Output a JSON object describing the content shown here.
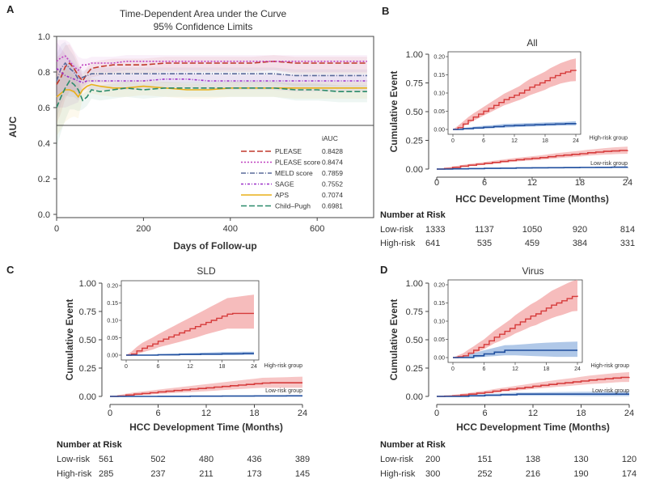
{
  "colors": {
    "high": "#d63b3b",
    "high_band": "#f2a0a0",
    "low": "#1f4e9e",
    "low_band": "#8fb1de",
    "high_number": "#c0392b",
    "low_number": "#2a52a0"
  },
  "chart_data": [
    {
      "panel": "A",
      "type": "line",
      "title": "Time-Dependent Area under the Curve",
      "subtitle": "95% Confidence Limits",
      "xlabel": "Days of Follow-up",
      "ylabel": "AUC",
      "xlim": [
        0,
        730
      ],
      "ylim": [
        0.0,
        1.0
      ],
      "xticks": [
        0,
        200,
        400,
        600
      ],
      "yticks": [
        0.0,
        0.2,
        0.4,
        0.6,
        0.8,
        1.0
      ],
      "reference_line": 0.5,
      "legend_header": "iAUC",
      "series": [
        {
          "name": "PLEASE",
          "iauc": "0.8428",
          "color": "#c0392b",
          "dash": "7,3",
          "x": [
            0,
            10,
            20,
            30,
            40,
            50,
            60,
            70,
            80,
            100,
            130,
            160,
            200,
            250,
            300,
            350,
            400,
            450,
            500,
            550,
            600,
            650,
            700,
            715
          ],
          "y": [
            0.73,
            0.77,
            0.83,
            0.85,
            0.82,
            0.78,
            0.75,
            0.79,
            0.82,
            0.83,
            0.84,
            0.84,
            0.84,
            0.85,
            0.85,
            0.85,
            0.85,
            0.85,
            0.86,
            0.85,
            0.85,
            0.85,
            0.85,
            0.85
          ]
        },
        {
          "name": "PLEASE score",
          "iauc": "0.8474",
          "color": "#c040c0",
          "dash": "2,2",
          "x": [
            0,
            10,
            20,
            30,
            40,
            50,
            60,
            70,
            80,
            100,
            130,
            160,
            200,
            250,
            300,
            350,
            400,
            450,
            500,
            550,
            600,
            650,
            700,
            715
          ],
          "y": [
            0.86,
            0.88,
            0.89,
            0.86,
            0.83,
            0.81,
            0.84,
            0.84,
            0.85,
            0.85,
            0.85,
            0.86,
            0.86,
            0.86,
            0.86,
            0.86,
            0.86,
            0.86,
            0.86,
            0.86,
            0.86,
            0.86,
            0.86,
            0.86
          ]
        },
        {
          "name": "MELD score",
          "iauc": "0.7859",
          "color": "#5a6a9a",
          "dash": "6,2,1,2",
          "x": [
            0,
            10,
            20,
            30,
            40,
            50,
            60,
            70,
            80,
            100,
            130,
            160,
            200,
            250,
            300,
            350,
            400,
            450,
            500,
            550,
            600,
            650,
            700,
            715
          ],
          "y": [
            0.75,
            0.82,
            0.85,
            0.82,
            0.8,
            0.76,
            0.77,
            0.78,
            0.79,
            0.79,
            0.79,
            0.79,
            0.79,
            0.79,
            0.79,
            0.79,
            0.79,
            0.79,
            0.79,
            0.78,
            0.78,
            0.78,
            0.78,
            0.78
          ]
        },
        {
          "name": "SAGE",
          "iauc": "0.7552",
          "color": "#9b30c8",
          "dash": "3,2,1,2",
          "x": [
            0,
            10,
            20,
            30,
            40,
            50,
            60,
            70,
            80,
            100,
            130,
            160,
            200,
            250,
            300,
            350,
            400,
            450,
            500,
            550,
            600,
            650,
            700,
            715
          ],
          "y": [
            0.82,
            0.8,
            0.78,
            0.77,
            0.76,
            0.75,
            0.74,
            0.75,
            0.75,
            0.75,
            0.75,
            0.75,
            0.75,
            0.76,
            0.76,
            0.75,
            0.75,
            0.75,
            0.75,
            0.75,
            0.75,
            0.75,
            0.75,
            0.75
          ]
        },
        {
          "name": "APS",
          "iauc": "0.7074",
          "color": "#e8b018",
          "dash": "",
          "x": [
            0,
            10,
            20,
            30,
            40,
            50,
            60,
            70,
            80,
            100,
            130,
            160,
            200,
            250,
            300,
            350,
            400,
            450,
            500,
            550,
            600,
            650,
            700,
            715
          ],
          "y": [
            0.66,
            0.68,
            0.7,
            0.7,
            0.69,
            0.66,
            0.7,
            0.72,
            0.73,
            0.72,
            0.71,
            0.71,
            0.72,
            0.71,
            0.7,
            0.7,
            0.71,
            0.71,
            0.71,
            0.71,
            0.71,
            0.71,
            0.71,
            0.71
          ]
        },
        {
          "name": "Child–Pugh",
          "iauc": "0.6981",
          "color": "#2a8a6a",
          "dash": "7,3",
          "x": [
            0,
            10,
            20,
            30,
            40,
            50,
            60,
            70,
            80,
            100,
            130,
            160,
            200,
            250,
            300,
            350,
            400,
            450,
            500,
            550,
            600,
            650,
            700,
            715
          ],
          "y": [
            0.6,
            0.66,
            0.71,
            0.75,
            0.73,
            0.7,
            0.64,
            0.66,
            0.7,
            0.69,
            0.7,
            0.71,
            0.7,
            0.71,
            0.71,
            0.71,
            0.71,
            0.71,
            0.71,
            0.7,
            0.7,
            0.69,
            0.69,
            0.69
          ]
        }
      ]
    },
    {
      "panel": "B",
      "type": "line",
      "title": "All",
      "xlabel": "HCC Development Time (Months)",
      "ylabel": "Cumulative Event",
      "xlim": [
        0,
        24
      ],
      "ylim": [
        0,
        1.0
      ],
      "xticks": [
        0,
        6,
        12,
        18,
        24
      ],
      "yticks": [
        "0.00",
        "0.25",
        "0.50",
        "0.75",
        "1.00"
      ],
      "inset_yticks": [
        "0.00",
        "0.05",
        "0.10",
        "0.15",
        "0.20"
      ],
      "inset_xticks": [
        0,
        6,
        12,
        18,
        24
      ],
      "high_label": "High-risk group",
      "low_label": "Low-risk group",
      "high_x": [
        0,
        1,
        2,
        3,
        4,
        5,
        6,
        7,
        8,
        9,
        10,
        11,
        12,
        13,
        14,
        15,
        16,
        17,
        18,
        19,
        20,
        21,
        22,
        23,
        24
      ],
      "high_y": [
        0.0,
        0.005,
        0.015,
        0.025,
        0.034,
        0.042,
        0.05,
        0.058,
        0.066,
        0.074,
        0.082,
        0.088,
        0.094,
        0.1,
        0.108,
        0.116,
        0.122,
        0.128,
        0.134,
        0.142,
        0.148,
        0.154,
        0.158,
        0.162,
        0.164
      ],
      "high_lo": [
        0.0,
        0.002,
        0.008,
        0.016,
        0.024,
        0.031,
        0.038,
        0.045,
        0.052,
        0.059,
        0.066,
        0.071,
        0.076,
        0.081,
        0.087,
        0.094,
        0.099,
        0.104,
        0.109,
        0.116,
        0.121,
        0.126,
        0.129,
        0.132,
        0.133
      ],
      "high_hi": [
        0.0,
        0.01,
        0.022,
        0.034,
        0.044,
        0.053,
        0.062,
        0.071,
        0.08,
        0.089,
        0.098,
        0.105,
        0.112,
        0.119,
        0.129,
        0.138,
        0.145,
        0.152,
        0.159,
        0.168,
        0.175,
        0.182,
        0.187,
        0.192,
        0.195
      ],
      "low_x": [
        0,
        2,
        4,
        6,
        8,
        10,
        12,
        14,
        16,
        18,
        20,
        22,
        24
      ],
      "low_y": [
        0.0,
        0.002,
        0.004,
        0.006,
        0.008,
        0.01,
        0.011,
        0.012,
        0.013,
        0.014,
        0.015,
        0.016,
        0.017
      ],
      "low_lo": [
        0.0,
        0.0,
        0.001,
        0.002,
        0.004,
        0.005,
        0.006,
        0.007,
        0.008,
        0.009,
        0.01,
        0.011,
        0.011
      ],
      "low_hi": [
        0.0,
        0.004,
        0.007,
        0.01,
        0.012,
        0.015,
        0.016,
        0.017,
        0.018,
        0.019,
        0.02,
        0.021,
        0.023
      ],
      "risk_header": "Number at Risk",
      "risk_rows": [
        {
          "label": "Low-risk",
          "group": "low",
          "values": [
            "1333",
            "1137",
            "1050",
            "920",
            "814"
          ]
        },
        {
          "label": "High-risk",
          "group": "high",
          "values": [
            "641",
            "535",
            "459",
            "384",
            "331"
          ]
        }
      ]
    },
    {
      "panel": "C",
      "type": "line",
      "title": "SLD",
      "xlabel": "HCC Development Time (Months)",
      "ylabel": "Cumulative Event",
      "xlim": [
        0,
        24
      ],
      "ylim": [
        0,
        1.0
      ],
      "xticks": [
        0,
        6,
        12,
        18,
        24
      ],
      "yticks": [
        "0.00",
        "0.25",
        "0.50",
        "0.75",
        "1.00"
      ],
      "inset_yticks": [
        "0.00",
        "0.05",
        "0.10",
        "0.15",
        "0.20"
      ],
      "inset_xticks": [
        0,
        6,
        12,
        18,
        24
      ],
      "high_label": "High-risk group",
      "low_label": "Low-risk group",
      "high_x": [
        0,
        1,
        2,
        3,
        4,
        5,
        6,
        7,
        8,
        9,
        10,
        11,
        12,
        13,
        14,
        15,
        16,
        17,
        18,
        19,
        20,
        21,
        22,
        23,
        24
      ],
      "high_y": [
        0.0,
        0.003,
        0.012,
        0.02,
        0.026,
        0.032,
        0.04,
        0.046,
        0.052,
        0.058,
        0.064,
        0.07,
        0.076,
        0.082,
        0.088,
        0.094,
        0.1,
        0.106,
        0.112,
        0.118,
        0.12,
        0.12,
        0.12,
        0.12,
        0.12
      ],
      "high_lo": [
        0.0,
        0.0,
        0.003,
        0.008,
        0.012,
        0.016,
        0.022,
        0.026,
        0.03,
        0.034,
        0.038,
        0.042,
        0.046,
        0.05,
        0.055,
        0.06,
        0.064,
        0.068,
        0.072,
        0.076,
        0.076,
        0.076,
        0.076,
        0.076,
        0.076
      ],
      "high_hi": [
        0.0,
        0.01,
        0.024,
        0.035,
        0.043,
        0.051,
        0.06,
        0.068,
        0.076,
        0.084,
        0.092,
        0.1,
        0.108,
        0.116,
        0.124,
        0.132,
        0.14,
        0.148,
        0.156,
        0.164,
        0.166,
        0.168,
        0.17,
        0.172,
        0.174
      ],
      "low_x": [
        0,
        2,
        4,
        6,
        8,
        10,
        12,
        14,
        16,
        18,
        20,
        22,
        24
      ],
      "low_y": [
        0.0,
        0.0,
        0.0,
        0.001,
        0.001,
        0.002,
        0.002,
        0.003,
        0.003,
        0.004,
        0.004,
        0.005,
        0.005
      ],
      "low_lo": [
        0.0,
        0.0,
        0.0,
        0.0,
        0.0,
        0.0,
        0.0,
        0.0,
        0.0,
        0.0,
        0.0,
        0.001,
        0.001
      ],
      "low_hi": [
        0.0,
        0.0,
        0.001,
        0.003,
        0.004,
        0.005,
        0.006,
        0.007,
        0.008,
        0.009,
        0.009,
        0.01,
        0.01
      ],
      "risk_header": "Number at Risk",
      "risk_rows": [
        {
          "label": "Low-risk",
          "group": "low",
          "values": [
            "561",
            "502",
            "480",
            "436",
            "389"
          ]
        },
        {
          "label": "High-risk",
          "group": "high",
          "values": [
            "285",
            "237",
            "211",
            "173",
            "145"
          ]
        }
      ]
    },
    {
      "panel": "D",
      "type": "line",
      "title": "Virus",
      "xlabel": "HCC Development Time (Months)",
      "ylabel": "Cumulative Event",
      "xlim": [
        0,
        24
      ],
      "ylim": [
        0,
        1.0
      ],
      "xticks": [
        0,
        6,
        12,
        18,
        24
      ],
      "yticks": [
        "0.00",
        "0.25",
        "0.50",
        "0.75",
        "1.00"
      ],
      "inset_yticks": [
        "0.00",
        "0.05",
        "0.10",
        "0.15",
        "0.20"
      ],
      "inset_xticks": [
        0,
        6,
        12,
        18,
        24
      ],
      "high_label": "High-risk group",
      "low_label": "Low-risk group",
      "high_x": [
        0,
        1,
        2,
        3,
        4,
        5,
        6,
        7,
        8,
        9,
        10,
        11,
        12,
        13,
        14,
        15,
        16,
        17,
        18,
        19,
        20,
        21,
        22,
        23,
        24
      ],
      "high_y": [
        0.0,
        0.002,
        0.005,
        0.012,
        0.02,
        0.028,
        0.036,
        0.046,
        0.056,
        0.064,
        0.072,
        0.08,
        0.09,
        0.098,
        0.106,
        0.114,
        0.12,
        0.128,
        0.136,
        0.144,
        0.15,
        0.156,
        0.162,
        0.168,
        0.17
      ],
      "high_lo": [
        0.0,
        0.0,
        0.001,
        0.005,
        0.011,
        0.017,
        0.023,
        0.031,
        0.039,
        0.045,
        0.052,
        0.058,
        0.066,
        0.072,
        0.078,
        0.085,
        0.089,
        0.096,
        0.102,
        0.108,
        0.113,
        0.117,
        0.122,
        0.127,
        0.128
      ],
      "high_hi": [
        0.0,
        0.006,
        0.012,
        0.022,
        0.031,
        0.041,
        0.05,
        0.062,
        0.074,
        0.084,
        0.094,
        0.104,
        0.116,
        0.126,
        0.136,
        0.146,
        0.154,
        0.163,
        0.173,
        0.183,
        0.19,
        0.197,
        0.204,
        0.21,
        0.214
      ],
      "low_x": [
        0,
        2,
        4,
        6,
        8,
        10,
        12,
        14,
        16,
        18,
        20,
        22,
        24
      ],
      "low_y": [
        0.0,
        0.0,
        0.005,
        0.01,
        0.015,
        0.02,
        0.02,
        0.02,
        0.02,
        0.02,
        0.02,
        0.02,
        0.02
      ],
      "low_lo": [
        0.0,
        0.0,
        0.0,
        0.002,
        0.004,
        0.006,
        0.006,
        0.005,
        0.004,
        0.003,
        0.002,
        0.002,
        0.002
      ],
      "low_hi": [
        0.0,
        0.004,
        0.012,
        0.02,
        0.027,
        0.034,
        0.035,
        0.037,
        0.039,
        0.041,
        0.042,
        0.043,
        0.044
      ],
      "risk_header": "Number at Risk",
      "risk_rows": [
        {
          "label": "Low-risk",
          "group": "low",
          "values": [
            "200",
            "151",
            "138",
            "130",
            "120"
          ]
        },
        {
          "label": "High-risk",
          "group": "high",
          "values": [
            "300",
            "252",
            "216",
            "190",
            "174"
          ]
        }
      ]
    }
  ]
}
